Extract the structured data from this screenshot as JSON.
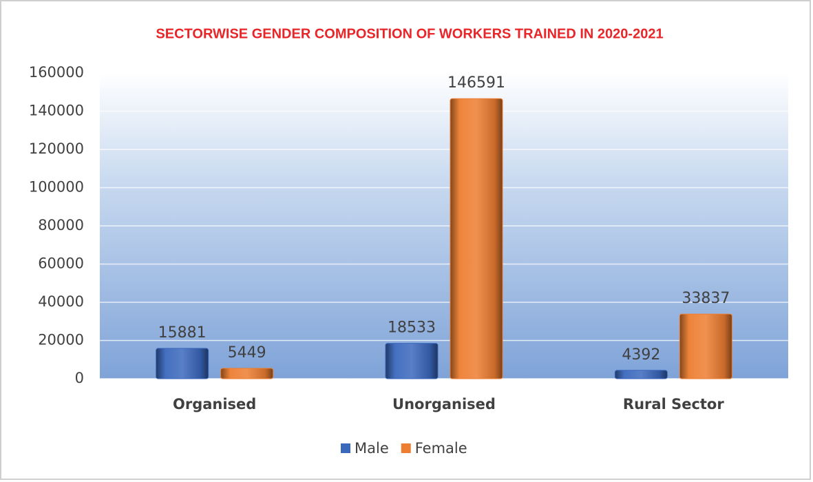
{
  "chart_data": {
    "type": "bar",
    "title": "SECTORWISE GENDER COMPOSITION OF WORKERS TRAINED IN 2020-2021",
    "categories": [
      "Organised",
      "Unorganised",
      "Rural Sector"
    ],
    "series": [
      {
        "name": "Male",
        "color": "#3a68bd",
        "values": [
          15881,
          18533,
          4392
        ]
      },
      {
        "name": "Female",
        "color": "#ed7d31",
        "values": [
          5449,
          146591,
          33837
        ]
      }
    ],
    "ylim": [
      0,
      160000
    ],
    "yticks": [
      0,
      20000,
      40000,
      60000,
      80000,
      100000,
      120000,
      140000,
      160000
    ],
    "grid": true,
    "legend": "bottom"
  }
}
